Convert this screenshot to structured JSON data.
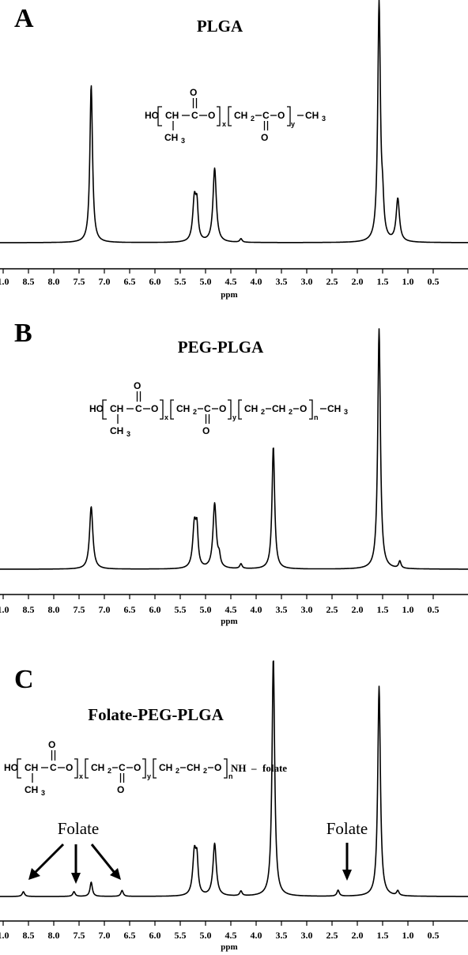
{
  "chart_data": [
    {
      "type": "line",
      "panel_label": "A",
      "title": "PLGA",
      "xlabel": "ppm",
      "x_reversed": true,
      "xticks": [
        "1.0",
        "8.5",
        "8.0",
        "7.5",
        "7.0",
        "6.5",
        "6.0",
        "5.5",
        "5.0",
        "4.5",
        "4.0",
        "3.5",
        "3.0",
        "2.5",
        "2.0",
        "1.5",
        "1.0",
        "0.5"
      ],
      "peaks": [
        {
          "ppm": 7.26,
          "height": 0.66
        },
        {
          "ppm": 5.22,
          "height": 0.18
        },
        {
          "ppm": 5.17,
          "height": 0.13
        },
        {
          "ppm": 4.82,
          "height": 0.31
        },
        {
          "ppm": 4.3,
          "height": 0.015
        },
        {
          "ppm": 1.57,
          "height": 1.0
        },
        {
          "ppm": 1.5,
          "height": 0.12
        },
        {
          "ppm": 1.2,
          "height": 0.18
        }
      ],
      "structure": {
        "ho": "HO",
        "ch": "CH",
        "c": "C",
        "o": "O",
        "ch3": "CH",
        "three": "3",
        "ch2": "CH",
        "two": "2",
        "sub_x": "x",
        "sub_y": "y",
        "end": "CH"
      }
    },
    {
      "type": "line",
      "panel_label": "B",
      "title": "PEG-PLGA",
      "xlabel": "ppm",
      "x_reversed": true,
      "xticks": [
        "1.0",
        "8.5",
        "8.0",
        "7.5",
        "7.0",
        "6.5",
        "6.0",
        "5.5",
        "5.0",
        "4.5",
        "4.0",
        "3.5",
        "3.0",
        "2.5",
        "2.0",
        "1.5",
        "1.0",
        "0.5"
      ],
      "peaks": [
        {
          "ppm": 7.26,
          "height": 0.26
        },
        {
          "ppm": 5.22,
          "height": 0.18
        },
        {
          "ppm": 5.17,
          "height": 0.14
        },
        {
          "ppm": 4.82,
          "height": 0.27
        },
        {
          "ppm": 4.73,
          "height": 0.04
        },
        {
          "ppm": 4.3,
          "height": 0.02
        },
        {
          "ppm": 3.66,
          "height": 0.51
        },
        {
          "ppm": 1.57,
          "height": 1.0
        },
        {
          "ppm": 1.16,
          "height": 0.03
        }
      ],
      "structure": {
        "ho": "HO",
        "ch": "CH",
        "c": "C",
        "o": "O",
        "ch3": "CH",
        "three": "3",
        "ch2": "CH",
        "two": "2",
        "sub_x": "x",
        "sub_y": "y",
        "sub_n": "n",
        "end": "CH"
      }
    },
    {
      "type": "line",
      "panel_label": "C",
      "title": "Folate-PEG-PLGA",
      "xlabel": "ppm",
      "x_reversed": true,
      "xticks": [
        "1.0",
        "8.5",
        "8.0",
        "7.5",
        "7.0",
        "6.5",
        "6.0",
        "5.5",
        "5.0",
        "4.5",
        "4.0",
        "3.5",
        "3.0",
        "2.5",
        "2.0",
        "1.5",
        "1.0",
        "0.5"
      ],
      "peaks": [
        {
          "ppm": 8.6,
          "height": 0.02
        },
        {
          "ppm": 7.6,
          "height": 0.02
        },
        {
          "ppm": 7.26,
          "height": 0.06
        },
        {
          "ppm": 6.65,
          "height": 0.025
        },
        {
          "ppm": 5.22,
          "height": 0.18
        },
        {
          "ppm": 5.17,
          "height": 0.13
        },
        {
          "ppm": 4.82,
          "height": 0.22
        },
        {
          "ppm": 4.3,
          "height": 0.02
        },
        {
          "ppm": 3.66,
          "height": 1.0
        },
        {
          "ppm": 2.38,
          "height": 0.025
        },
        {
          "ppm": 1.57,
          "height": 0.88
        },
        {
          "ppm": 1.2,
          "height": 0.02
        }
      ],
      "structure": {
        "ho": "HO",
        "ch": "CH",
        "c": "C",
        "o": "O",
        "ch3": "CH",
        "three": "3",
        "ch2": "CH",
        "two": "2",
        "sub_x": "x",
        "sub_y": "y",
        "sub_n": "n",
        "nh": "NH",
        "dash": "–",
        "folate": "folate"
      },
      "annotations": [
        "Folate",
        "Folate"
      ]
    }
  ]
}
